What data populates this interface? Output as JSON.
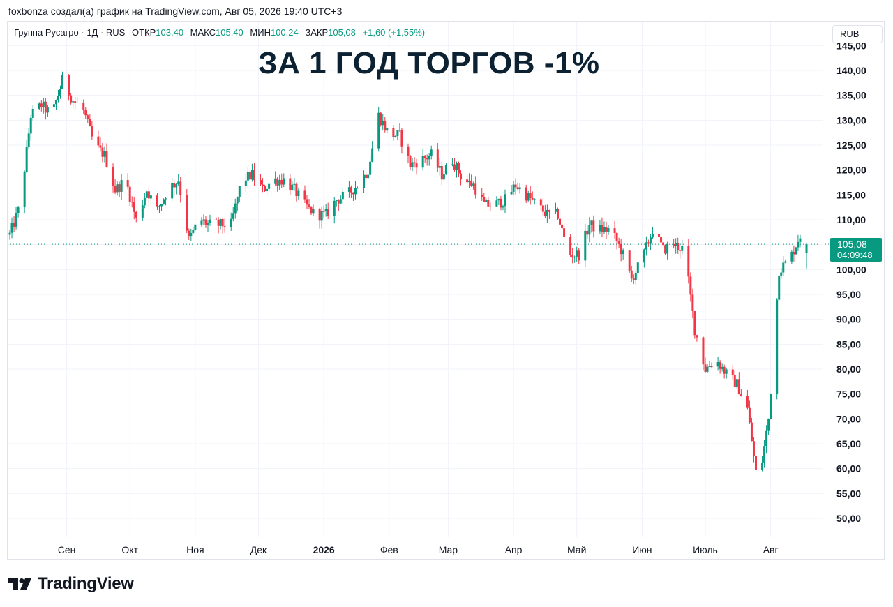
{
  "attribution": "foxbonza создал(а) график на TradingView.com, Авг 05, 2026 19:40 UTC+3",
  "legend": {
    "symbol": "Группа Русагро · 1Д · RUS",
    "open_label": "ОТКР",
    "open": "103,40",
    "high_label": "МАКС",
    "high": "105,40",
    "low_label": "МИН",
    "low": "100,24",
    "close_label": "ЗАКР",
    "close": "105,08",
    "change": "+1,60 (+1,55%)"
  },
  "headline": "ЗА 1 ГОД ТОРГОВ -1%",
  "currency": "RUB",
  "price_tag": {
    "price": "105,08",
    "timer": "04:09:48"
  },
  "brand": "TradingView",
  "colors": {
    "up": "#089981",
    "down": "#f23645",
    "grid": "#f0f3fa",
    "text": "#131722"
  },
  "chart_data": {
    "type": "candlestick",
    "title": "ЗА 1 ГОД ТОРГОВ -1%",
    "ylim": [
      46,
      146
    ],
    "y_ticks": [
      145,
      140,
      135,
      130,
      125,
      120,
      115,
      110,
      105,
      100,
      95,
      90,
      85,
      80,
      75,
      70,
      65,
      60,
      55,
      50
    ],
    "y_tick_labels": [
      "145,00",
      "140,00",
      "135,00",
      "130,00",
      "125,00",
      "120,00",
      "115,00",
      "110,00",
      "105,00",
      "100,00",
      "95,00",
      "90,00",
      "85,00",
      "80,00",
      "75,00",
      "70,00",
      "65,00",
      "60,00",
      "55,00",
      "50,00"
    ],
    "x_ticks": [
      {
        "label": "Сен",
        "day": 27,
        "bold": false
      },
      {
        "label": "Окт",
        "day": 57,
        "bold": false
      },
      {
        "label": "Ноя",
        "day": 88,
        "bold": false
      },
      {
        "label": "Дек",
        "day": 118,
        "bold": false
      },
      {
        "label": "2026",
        "day": 149,
        "bold": true
      },
      {
        "label": "Фев",
        "day": 180,
        "bold": false
      },
      {
        "label": "Мар",
        "day": 208,
        "bold": false
      },
      {
        "label": "Апр",
        "day": 239,
        "bold": false
      },
      {
        "label": "Май",
        "day": 269,
        "bold": false
      },
      {
        "label": "Июн",
        "day": 300,
        "bold": false
      },
      {
        "label": "Июль",
        "day": 330,
        "bold": false
      },
      {
        "label": "Авг",
        "day": 361,
        "bold": false
      }
    ],
    "x_range_days": [
      0,
      366
    ],
    "current_price": 105.08,
    "close_path": [
      [
        0,
        107
      ],
      [
        5,
        113
      ],
      [
        10,
        131
      ],
      [
        15,
        133
      ],
      [
        20,
        131
      ],
      [
        25,
        138
      ],
      [
        30,
        134
      ],
      [
        35,
        132
      ],
      [
        40,
        125
      ],
      [
        45,
        123
      ],
      [
        50,
        116
      ],
      [
        55,
        118
      ],
      [
        60,
        110
      ],
      [
        65,
        116
      ],
      [
        70,
        112
      ],
      [
        75,
        116
      ],
      [
        80,
        118
      ],
      [
        85,
        106
      ],
      [
        90,
        110
      ],
      [
        95,
        109
      ],
      [
        100,
        109
      ],
      [
        105,
        109
      ],
      [
        110,
        118
      ],
      [
        115,
        119
      ],
      [
        120,
        116
      ],
      [
        125,
        118
      ],
      [
        130,
        118
      ],
      [
        135,
        116
      ],
      [
        140,
        113
      ],
      [
        145,
        111
      ],
      [
        150,
        111
      ],
      [
        155,
        114
      ],
      [
        160,
        115
      ],
      [
        165,
        117
      ],
      [
        170,
        120
      ],
      [
        175,
        131
      ],
      [
        180,
        127
      ],
      [
        185,
        127
      ],
      [
        190,
        121
      ],
      [
        195,
        122
      ],
      [
        200,
        123
      ],
      [
        205,
        119
      ],
      [
        210,
        122
      ],
      [
        215,
        118
      ],
      [
        220,
        117
      ],
      [
        225,
        113
      ],
      [
        230,
        113
      ],
      [
        235,
        114
      ],
      [
        240,
        117
      ],
      [
        245,
        115
      ],
      [
        250,
        113
      ],
      [
        255,
        111
      ],
      [
        260,
        111
      ],
      [
        265,
        103
      ],
      [
        270,
        103
      ],
      [
        275,
        109
      ],
      [
        280,
        108
      ],
      [
        285,
        108
      ],
      [
        290,
        104
      ],
      [
        295,
        98
      ],
      [
        300,
        102
      ],
      [
        305,
        108
      ],
      [
        310,
        104
      ],
      [
        315,
        105
      ],
      [
        320,
        104
      ],
      [
        325,
        88
      ],
      [
        330,
        80
      ],
      [
        335,
        82
      ],
      [
        340,
        79
      ],
      [
        345,
        77
      ],
      [
        350,
        72
      ],
      [
        355,
        56
      ],
      [
        360,
        70
      ],
      [
        365,
        100
      ],
      [
        370,
        102
      ],
      [
        375,
        107
      ],
      [
        378,
        105.08
      ]
    ]
  }
}
